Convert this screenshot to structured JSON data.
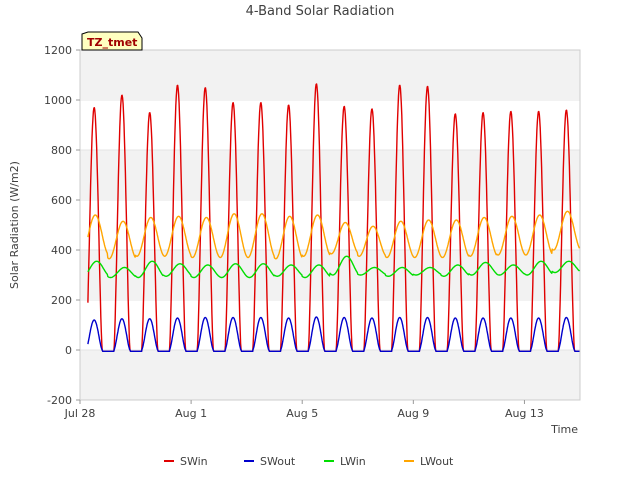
{
  "chart_data": {
    "type": "line",
    "title": "4-Band Solar Radiation",
    "xlabel": "Time",
    "ylabel": "Solar Radiation (W/m2)",
    "ylim": [
      -200,
      1200
    ],
    "yticks": [
      -200,
      0,
      200,
      400,
      600,
      800,
      1000,
      1200
    ],
    "xlim": [
      0,
      18
    ],
    "xticks": [
      {
        "pos": 0,
        "label": "Jul 28"
      },
      {
        "pos": 4,
        "label": "Aug 1"
      },
      {
        "pos": 8,
        "label": "Aug 5"
      },
      {
        "pos": 12,
        "label": "Aug 9"
      },
      {
        "pos": 16,
        "label": "Aug 13"
      }
    ],
    "grid": true,
    "legend_position": "bottom",
    "annotation": "TZ_tmet",
    "days": [
      "Jul 28",
      "Jul 29",
      "Jul 30",
      "Jul 31",
      "Aug 1",
      "Aug 2",
      "Aug 3",
      "Aug 4",
      "Aug 5",
      "Aug 6",
      "Aug 7",
      "Aug 8",
      "Aug 9",
      "Aug 10",
      "Aug 11",
      "Aug 12",
      "Aug 13",
      "Aug 14"
    ],
    "series": [
      {
        "name": "SWin",
        "color": "#e00000",
        "daily_peak": [
          970,
          1020,
          950,
          1060,
          1050,
          990,
          990,
          980,
          1065,
          975,
          965,
          1060,
          1055,
          945,
          950,
          955,
          955,
          960
        ],
        "night_value": -5
      },
      {
        "name": "SWout",
        "color": "#0000cc",
        "daily_peak": [
          120,
          125,
          125,
          128,
          130,
          130,
          130,
          128,
          132,
          130,
          128,
          130,
          130,
          128,
          128,
          128,
          128,
          130
        ],
        "night_value": -5
      },
      {
        "name": "LWin",
        "color": "#00dd00",
        "daily_min": [
          295,
          290,
          290,
          295,
          290,
          290,
          290,
          295,
          290,
          300,
          300,
          295,
          300,
          295,
          300,
          300,
          300,
          310
        ],
        "daily_max": [
          355,
          330,
          355,
          345,
          340,
          345,
          345,
          340,
          340,
          375,
          330,
          330,
          330,
          340,
          350,
          340,
          355,
          355
        ]
      },
      {
        "name": "LWout",
        "color": "#ffa500",
        "daily_min": [
          380,
          365,
          375,
          375,
          370,
          370,
          370,
          365,
          375,
          385,
          375,
          370,
          370,
          370,
          375,
          380,
          380,
          400
        ],
        "daily_max": [
          540,
          515,
          530,
          535,
          530,
          545,
          545,
          535,
          540,
          510,
          495,
          515,
          520,
          520,
          530,
          535,
          540,
          555
        ]
      }
    ]
  }
}
